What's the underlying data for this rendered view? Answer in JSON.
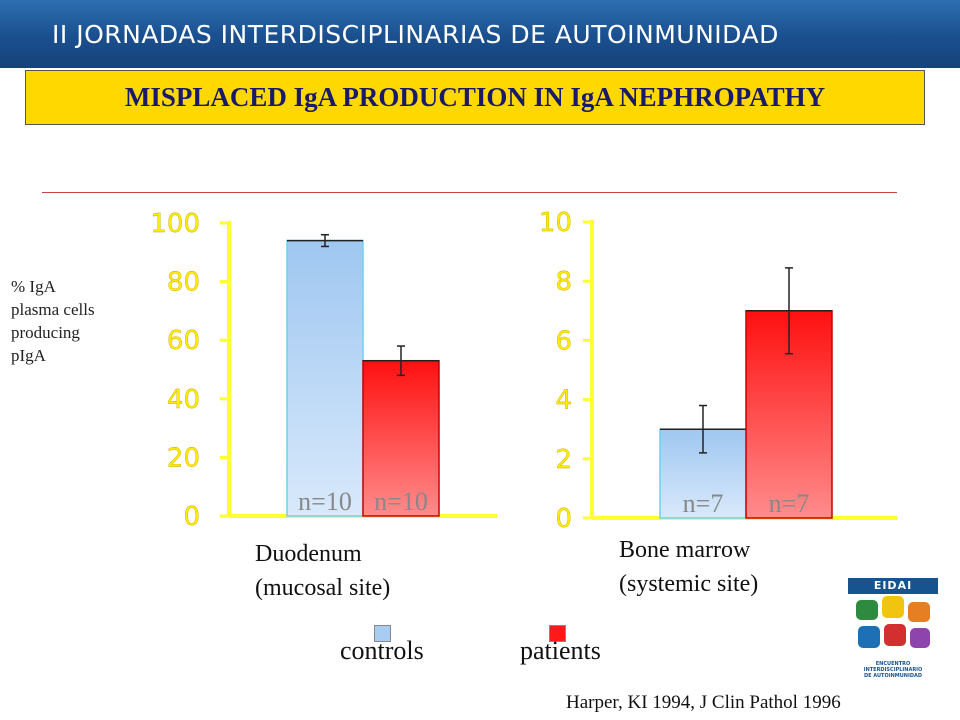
{
  "header": {
    "title": "II JORNADAS INTERDISCIPLINARIAS DE AUTOINMUNIDAD"
  },
  "title": "MISPLACED IgA PRODUCTION IN IgA NEPHROPATHY",
  "y_label_lines": [
    "% IgA",
    "plasma cells",
    "producing",
    "pIgA"
  ],
  "legend": {
    "controls": "controls",
    "patients": "patients"
  },
  "citation": "Harper, KI 1994, J Clin Pathol 1996",
  "logo": {
    "text": "EIDAI",
    "caption_lines": [
      "ENCUENTRO",
      "INTERDISCIPLINARIO",
      "DE AUTOINMUNIDAD"
    ]
  },
  "colors": {
    "controls": "#a8ccf2",
    "patients": "#ff1a1a",
    "axis": "#ffff33",
    "tick_text": "#ffee00",
    "n_label": "#888888"
  },
  "chart_data": [
    {
      "type": "bar",
      "categories": [
        "Duodenum (mucosal site)"
      ],
      "category_lines": [
        "Duodenum",
        "(mucosal site)"
      ],
      "series": [
        {
          "name": "controls",
          "values": [
            94
          ],
          "error": [
            2
          ],
          "n_label": "n=10"
        },
        {
          "name": "patients",
          "values": [
            53
          ],
          "error": [
            5
          ],
          "n_label": "n=10"
        }
      ],
      "yticks": [
        "0",
        "20",
        "40",
        "60",
        "80",
        "100"
      ],
      "ylim": [
        0,
        100
      ]
    },
    {
      "type": "bar",
      "categories": [
        "Bone marrow (systemic site)"
      ],
      "category_lines": [
        "Bone marrow",
        "(systemic site)"
      ],
      "series": [
        {
          "name": "controls",
          "values": [
            3
          ],
          "error": [
            0.8
          ],
          "n_label": "n=7"
        },
        {
          "name": "patients",
          "values": [
            7
          ],
          "error": [
            1.45
          ],
          "n_label": "n=7"
        }
      ],
      "yticks": [
        "0",
        "2",
        "4",
        "6",
        "8",
        "10"
      ],
      "ylim": [
        0,
        10
      ]
    }
  ]
}
